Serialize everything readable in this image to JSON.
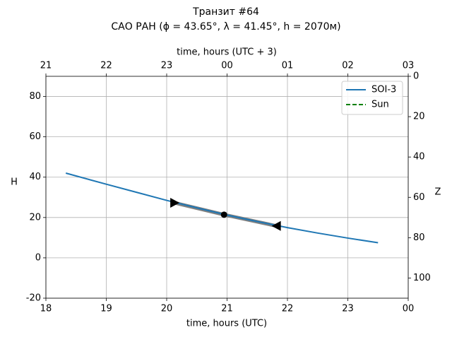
{
  "chart_data": {
    "type": "line",
    "title": "Транзит #64",
    "subtitle": "САО РАН (ϕ = 43.65°, λ = 41.45°, h = 2070м)",
    "xlabel": "time, hours (UTC)",
    "x2label": "time, hours (UTC + 3)",
    "ylabel": "H",
    "y2label": "Z",
    "xlim": [
      18,
      24
    ],
    "xticks": [
      18,
      19,
      20,
      21,
      22,
      23,
      {
        "value": 24,
        "label": "00"
      }
    ],
    "x2lim": [
      21,
      27
    ],
    "x2ticks": [
      21,
      22,
      23,
      {
        "value": 24,
        "label": "00"
      },
      {
        "value": 25,
        "label": "01"
      },
      {
        "value": 26,
        "label": "02"
      },
      {
        "value": 27,
        "label": "03"
      }
    ],
    "ylim": [
      -20,
      90
    ],
    "yticks": [
      -20,
      0,
      20,
      40,
      60,
      80
    ],
    "y2lim": [
      110,
      0
    ],
    "y2ticks": [
      0,
      20,
      40,
      60,
      80,
      100
    ],
    "grid": true,
    "legend": "upper right",
    "series": [
      {
        "name": "SOI-3",
        "color": "#1f77b4",
        "x": [
          18.33,
          19,
          19.5,
          20,
          20.5,
          21,
          21.5,
          22,
          22.5,
          23,
          23.5
        ],
        "values": [
          42,
          36.5,
          32.5,
          28.5,
          24.8,
          21.2,
          18,
          15,
          12.3,
          9.8,
          7.5
        ]
      },
      {
        "name": "Sun",
        "color": "#008000",
        "x": [],
        "values": []
      }
    ],
    "transit": {
      "color": "#808080",
      "x": [
        20.13,
        20.95,
        21.82
      ],
      "values": [
        27.3,
        21.4,
        15.8
      ]
    }
  }
}
